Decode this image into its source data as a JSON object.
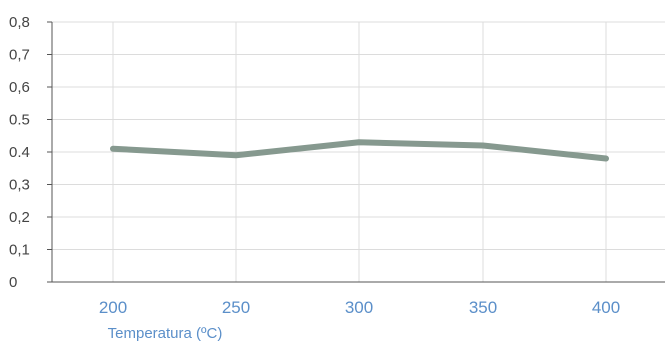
{
  "chart_data": {
    "type": "line",
    "title": "",
    "xlabel": "Temperatura (ºC)",
    "ylabel": "",
    "categories": [
      "200",
      "250",
      "300",
      "350",
      "400"
    ],
    "series": [
      {
        "values": [
          0.41,
          0.39,
          0.43,
          0.42,
          0.38
        ]
      }
    ],
    "ylim": [
      0,
      0.8
    ],
    "yticks": [
      "0",
      "0,1",
      "0,2",
      "0,3",
      "0.4",
      "0.5",
      "0,6",
      "0,7",
      "0,8"
    ],
    "grid": true,
    "colors": {
      "line": "#86998f",
      "grid": "#dcdcdc",
      "axis": "#555555",
      "x_text": "#5b8fc9",
      "y_text": "#444444"
    }
  }
}
